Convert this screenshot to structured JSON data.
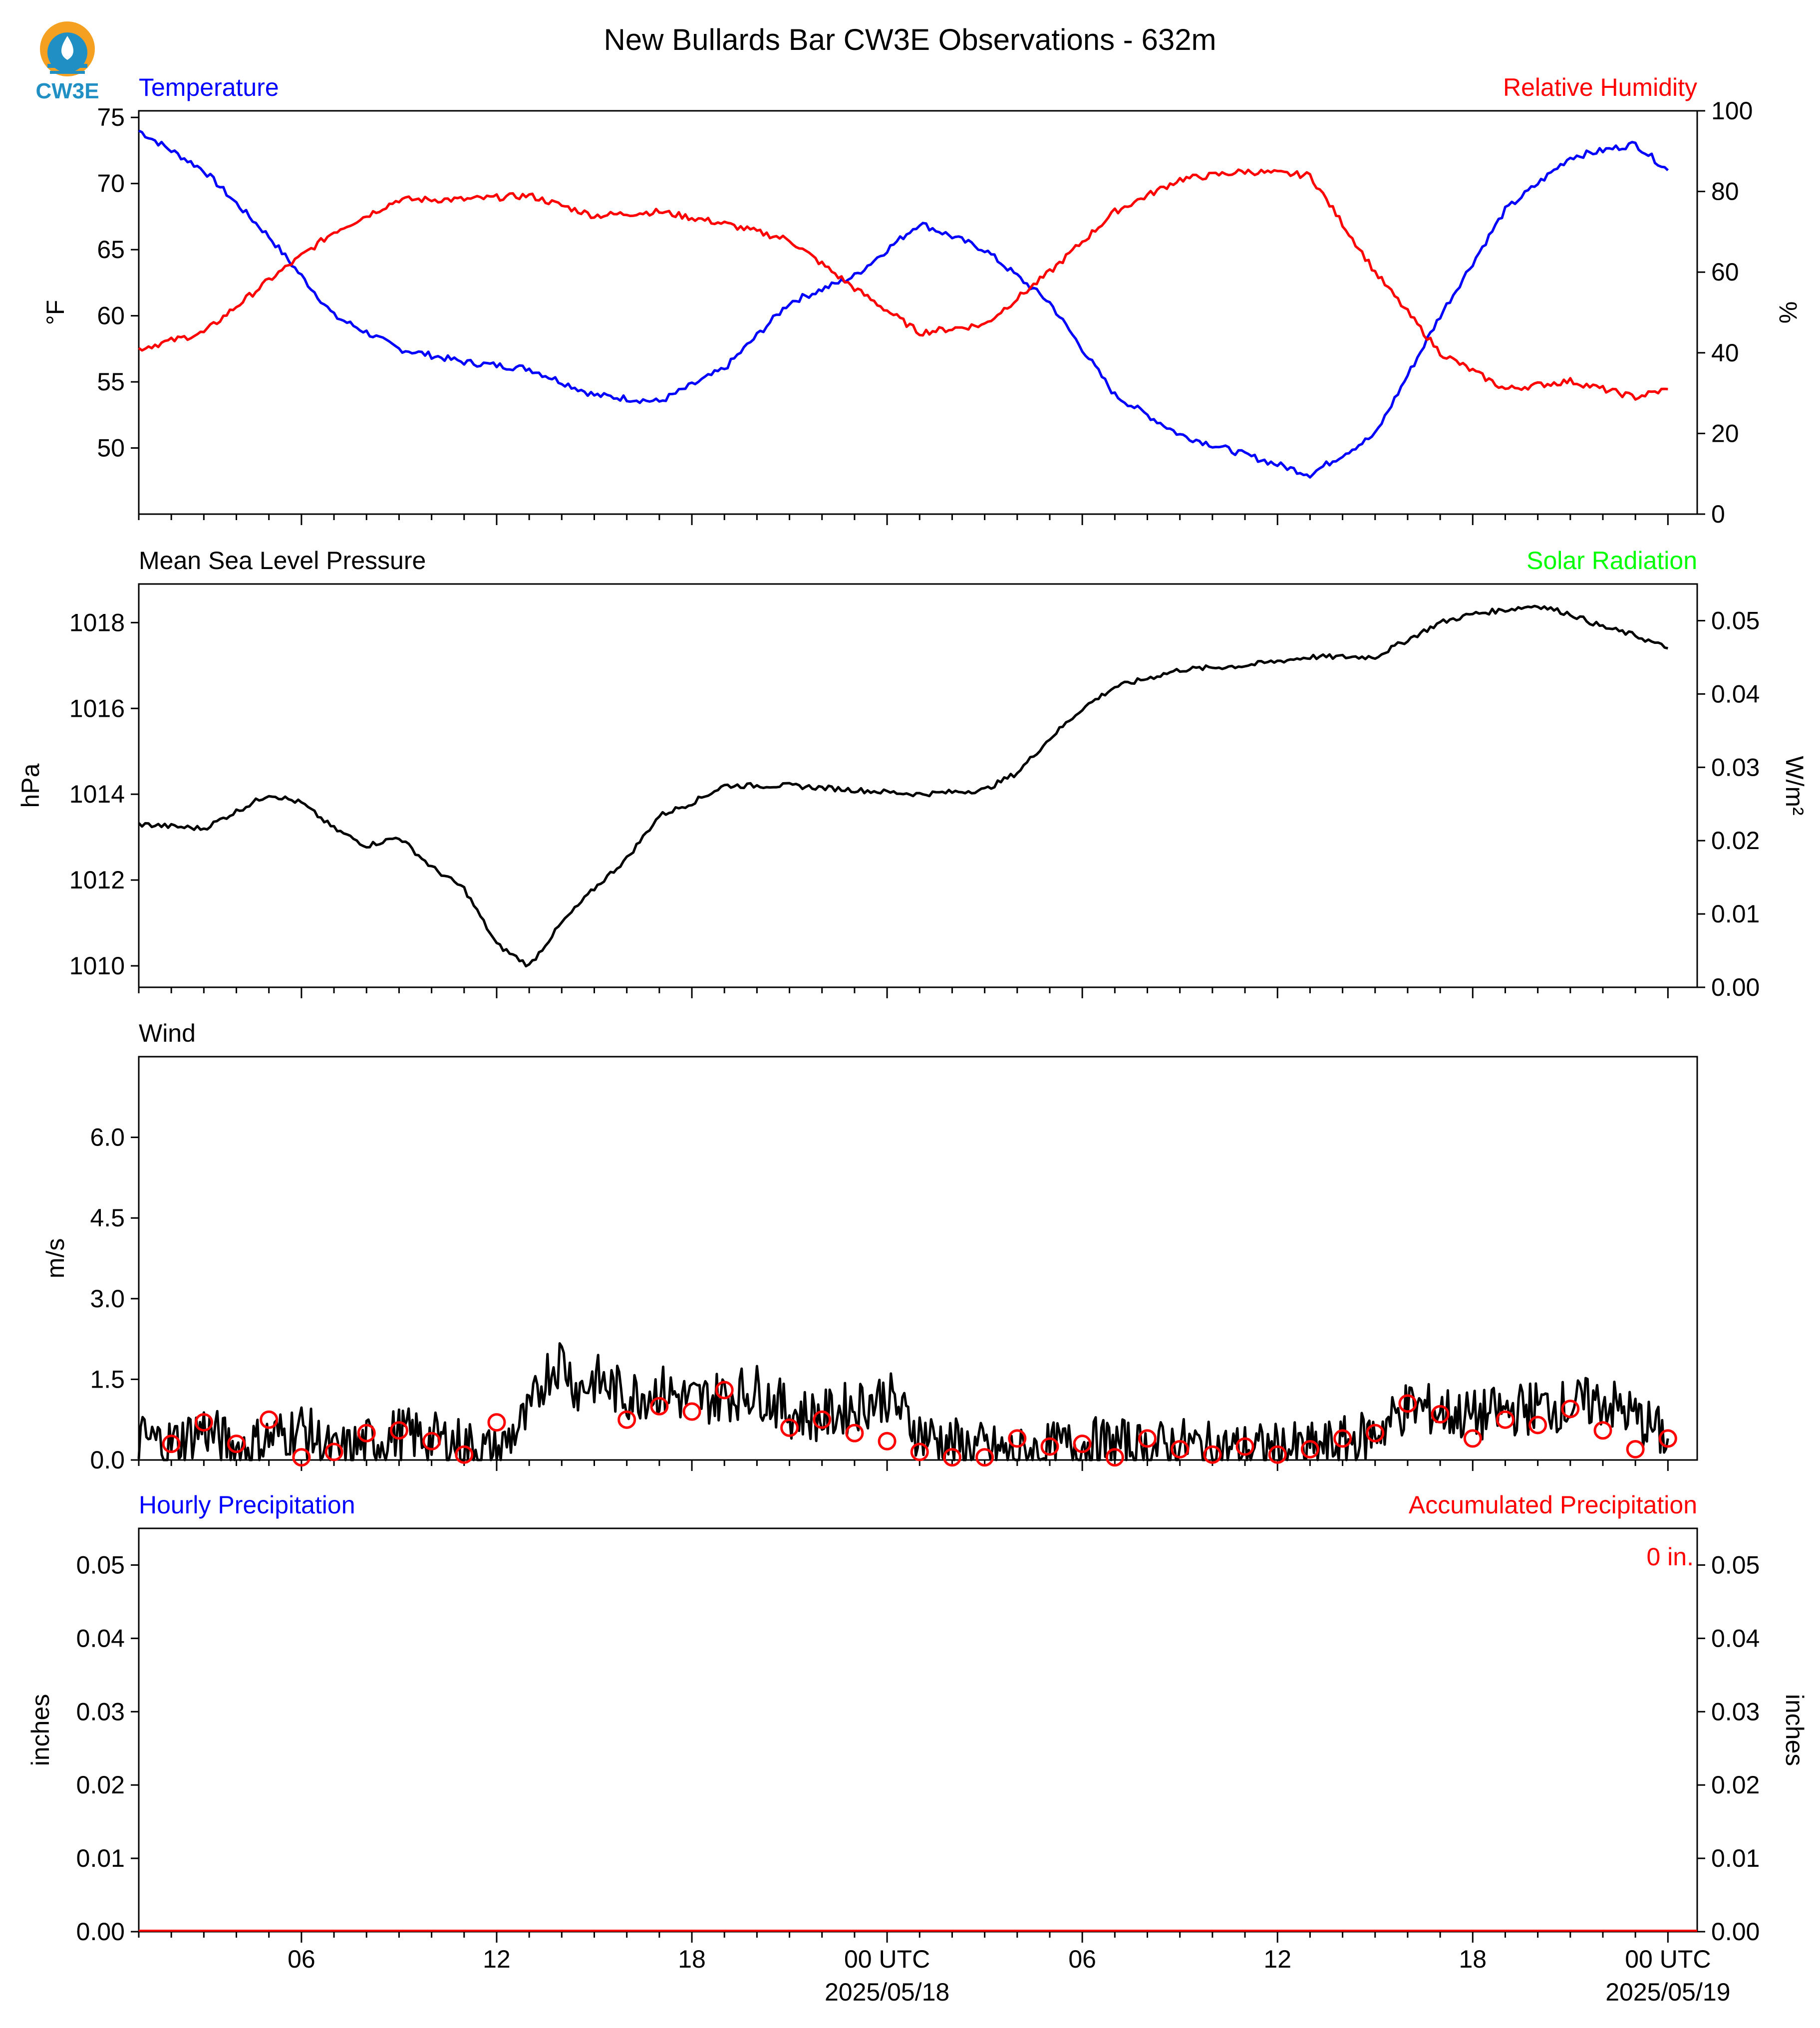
{
  "logo": {
    "text": "CW3E"
  },
  "chart_data": [
    {
      "type": "line",
      "title": "New Bullards Bar CW3E Observations - 632m",
      "panel": "temperature-humidity",
      "left_title": "Temperature",
      "right_title": "Relative Humidity",
      "ylabel": "°F",
      "ylabel_right": "%",
      "ylim": [
        45,
        75.5
      ],
      "ylim_right": [
        0,
        100
      ],
      "yticks": [
        "50",
        "55",
        "60",
        "65",
        "70",
        "75"
      ],
      "yticks_right": [
        "0",
        "20",
        "40",
        "60",
        "80",
        "100"
      ],
      "x_hours": [
        0,
        2,
        4,
        6,
        8,
        10,
        12,
        14,
        16,
        18,
        20,
        22,
        24,
        26,
        28,
        30,
        32,
        34,
        36,
        38,
        40,
        42,
        44,
        46,
        47
      ],
      "series": [
        {
          "name": "Temperature",
          "axis": "left",
          "color": "#0000ff",
          "values": [
            74,
            71,
            66,
            60,
            57.5,
            56.5,
            56,
            54,
            53.5,
            56,
            61,
            63,
            67,
            65,
            61,
            54,
            51,
            49.5,
            48,
            51,
            60,
            68,
            72,
            73,
            71
          ]
        },
        {
          "name": "Relative Humidity",
          "axis": "right",
          "color": "#ff0000",
          "values": [
            41,
            45,
            58,
            70,
            78,
            78,
            79,
            74,
            75,
            72,
            68,
            56,
            45,
            47,
            60,
            75,
            83,
            85,
            84,
            60,
            40,
            31,
            33,
            29,
            31
          ]
        }
      ]
    },
    {
      "type": "line",
      "panel": "pressure-solar",
      "left_title": "Mean Sea Level Pressure",
      "right_title": "Solar Radiation",
      "ylabel": "hPa",
      "ylabel_right": "W/m²",
      "ylim": [
        1009.5,
        1018.9
      ],
      "ylim_right": [
        0,
        0.055
      ],
      "yticks": [
        "1010",
        "1012",
        "1014",
        "1016",
        "1018"
      ],
      "yticks_right": [
        "0.00",
        "0.01",
        "0.02",
        "0.03",
        "0.04",
        "0.05"
      ],
      "x_hours": [
        0,
        2,
        4,
        5,
        6,
        7,
        8,
        9,
        10,
        11,
        12,
        13,
        14,
        15,
        16,
        17,
        18,
        20,
        22,
        24,
        26,
        27,
        28,
        29,
        30,
        32,
        34,
        36,
        38,
        40,
        41,
        42,
        43,
        44,
        45,
        46,
        47
      ],
      "series": [
        {
          "name": "Mean Sea Level Pressure",
          "axis": "left",
          "color": "#000000",
          "values": [
            1013.3,
            1013.2,
            1014,
            1013.8,
            1013.2,
            1012.8,
            1013,
            1012.3,
            1011.8,
            1010.5,
            1010,
            1011,
            1011.8,
            1012.5,
            1013.5,
            1013.8,
            1014.2,
            1014.2,
            1014.1,
            1014,
            1014.1,
            1014.5,
            1015.3,
            1016,
            1016.5,
            1016.9,
            1017,
            1017.2,
            1017.2,
            1018,
            1018.2,
            1018.3,
            1018.4,
            1018.2,
            1017.9,
            1017.7,
            1017.4
          ]
        }
      ]
    },
    {
      "type": "line",
      "panel": "wind",
      "left_title": "Wind",
      "ylabel": "m/s",
      "ylim": [
        0,
        7.5
      ],
      "yticks": [
        "0.0",
        "1.5",
        "3.0",
        "4.5",
        "6.0"
      ],
      "x_hours": [
        0,
        1,
        2,
        3,
        4,
        5,
        6,
        7,
        8,
        9,
        10,
        11,
        11.5,
        12,
        12.5,
        13,
        13.5,
        14,
        15,
        16,
        17,
        18,
        19,
        20,
        21,
        22,
        23,
        24,
        25,
        26,
        27,
        28,
        29,
        30,
        31,
        32,
        33,
        34,
        35,
        36,
        37,
        38,
        39,
        40,
        41,
        42,
        43,
        44,
        45,
        46,
        47
      ],
      "series": [
        {
          "name": "Wind speed",
          "color": "#000000",
          "values": [
            0.4,
            0.3,
            0.6,
            0.2,
            0.4,
            0.6,
            0.1,
            0.3,
            0.5,
            0.4,
            0.3,
            0.1,
            0.5,
            0.8,
            1.6,
            1.9,
            1.3,
            1.5,
            1.2,
            1.3,
            1.1,
            1.2,
            1.3,
            0.9,
            0.8,
            1.0,
            1.2,
            0.5,
            0.3,
            0.2,
            0.1,
            0.2,
            0.3,
            0.3,
            0.2,
            0.3,
            0.2,
            0.2,
            0.2,
            0.2,
            0.3,
            0.5,
            1.0,
            0.9,
            0.8,
            0.9,
            1.0,
            1.0,
            1.1,
            0.8,
            0.4
          ]
        }
      ],
      "direction_marks": [
        {
          "x": 1,
          "y": 0.3
        },
        {
          "x": 2,
          "y": 0.7
        },
        {
          "x": 3,
          "y": 0.3
        },
        {
          "x": 4,
          "y": 0.75
        },
        {
          "x": 5,
          "y": 0.05
        },
        {
          "x": 6,
          "y": 0.15
        },
        {
          "x": 7,
          "y": 0.5
        },
        {
          "x": 8,
          "y": 0.55
        },
        {
          "x": 9,
          "y": 0.35
        },
        {
          "x": 10,
          "y": 0.1
        },
        {
          "x": 11,
          "y": 0.7
        },
        {
          "x": 15,
          "y": 0.75
        },
        {
          "x": 16,
          "y": 1.0
        },
        {
          "x": 17,
          "y": 0.9
        },
        {
          "x": 18,
          "y": 1.3
        },
        {
          "x": 20,
          "y": 0.6
        },
        {
          "x": 21,
          "y": 0.75
        },
        {
          "x": 22,
          "y": 0.5
        },
        {
          "x": 23,
          "y": 0.35
        },
        {
          "x": 24,
          "y": 0.15
        },
        {
          "x": 25,
          "y": 0.05
        },
        {
          "x": 26,
          "y": 0.05
        },
        {
          "x": 27,
          "y": 0.4
        },
        {
          "x": 28,
          "y": 0.25
        },
        {
          "x": 29,
          "y": 0.3
        },
        {
          "x": 30,
          "y": 0.05
        },
        {
          "x": 31,
          "y": 0.4
        },
        {
          "x": 32,
          "y": 0.2
        },
        {
          "x": 33,
          "y": 0.1
        },
        {
          "x": 34,
          "y": 0.25
        },
        {
          "x": 35,
          "y": 0.1
        },
        {
          "x": 36,
          "y": 0.2
        },
        {
          "x": 37,
          "y": 0.4
        },
        {
          "x": 38,
          "y": 0.5
        },
        {
          "x": 39,
          "y": 1.05
        },
        {
          "x": 40,
          "y": 0.85
        },
        {
          "x": 41,
          "y": 0.4
        },
        {
          "x": 42,
          "y": 0.75
        },
        {
          "x": 43,
          "y": 0.65
        },
        {
          "x": 44,
          "y": 0.95
        },
        {
          "x": 45,
          "y": 0.55
        },
        {
          "x": 46,
          "y": 0.2
        },
        {
          "x": 47,
          "y": 0.4
        }
      ],
      "direction_color": "#ff0000"
    },
    {
      "type": "bar",
      "panel": "precipitation",
      "left_title": "Hourly Precipitation",
      "right_title": "Accumulated Precipitation",
      "ylabel": "inches",
      "ylabel_right": "inches",
      "ylim": [
        0,
        0.055
      ],
      "yticks": [
        "0.00",
        "0.01",
        "0.02",
        "0.03",
        "0.04",
        "0.05"
      ],
      "yticks_right": [
        "0.00",
        "0.01",
        "0.02",
        "0.03",
        "0.04",
        "0.05"
      ],
      "total_label": "0 in.",
      "values": [
        0
      ]
    }
  ],
  "x_axis": {
    "labels": [
      {
        "hour": 5,
        "text": "06"
      },
      {
        "hour": 11,
        "text": "12"
      },
      {
        "hour": 17,
        "text": "18"
      },
      {
        "hour": 23,
        "text": "00 UTC",
        "sub": "2025/05/18"
      },
      {
        "hour": 29,
        "text": "06"
      },
      {
        "hour": 35,
        "text": "12"
      },
      {
        "hour": 41,
        "text": "18"
      },
      {
        "hour": 47,
        "text": "00 UTC",
        "sub": "2025/05/19"
      }
    ]
  },
  "colors": {
    "temperature": "#0000ff",
    "humidity": "#ff0000",
    "solar": "#00ff00",
    "precip_hourly": "#0000ff",
    "precip_accum": "#ff0000"
  }
}
